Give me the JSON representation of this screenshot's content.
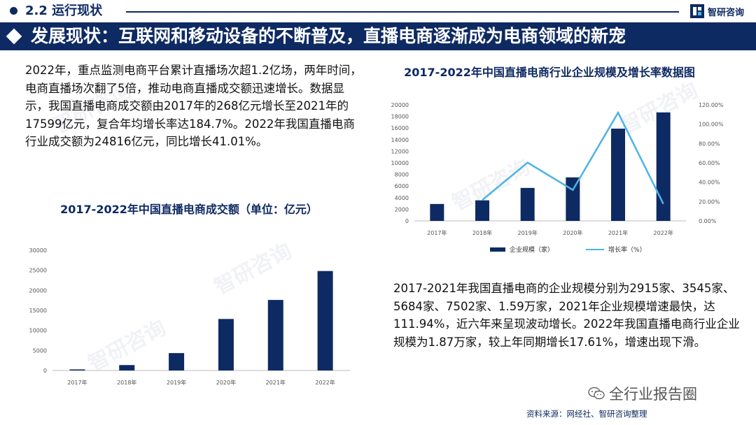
{
  "header": {
    "section_title": "2.2 运行现状",
    "logo_text": "智研咨询",
    "banner_text": "发展现状：互联网和移动设备的不断普及，直播电商逐渐成为电商领域的新宠"
  },
  "watermark_text": "智研咨询",
  "paragraph_left": "2022年，重点监测电商平台累计直播场次超1.2亿场，两年时间，电商直播场次翻了5倍，推动电商直播成交额迅速增长。数据显示，我国直播电商成交额由2017年的268亿元增长至2021年的17599亿元，复合年均增长率达184.7%。2022年我国直播电商行业成交额为24816亿元，同比增长41.01%。",
  "paragraph_right": "2017-2021年我国直播电商的企业规模分别为2915家、3545家、5684家、7502家、1.59万家，2021年企业规模增速最快，达111.94%，近六年来呈现波动增长。2022年我国直播电商行业企业规模为1.87万家，较上年同期增长17.61%，增速出现下滑。",
  "footer": {
    "wechat_label": "全行业报告圈",
    "source": "资料来源：网经社、智研咨询整理"
  },
  "colors": {
    "navy": "#0e2a63",
    "line_blue": "#4db3e6"
  },
  "chart_data": [
    {
      "type": "bar",
      "title": "2017-2022年中国直播电商成交额（单位：亿元）",
      "categories": [
        "2017年",
        "2018年",
        "2019年",
        "2020年",
        "2021年",
        "2022年"
      ],
      "values": [
        268,
        1354,
        4338,
        12850,
        17599,
        24816
      ],
      "ylim": [
        0,
        30000
      ],
      "yticks": [
        0,
        5000,
        10000,
        15000,
        20000,
        25000,
        30000
      ],
      "grid": false,
      "color": "#0e2a63"
    },
    {
      "type": "bar",
      "title": "2017-2022年中国直播电商行业企业规模及增长率数据图",
      "categories": [
        "2017年",
        "2018年",
        "2019年",
        "2020年",
        "2021年",
        "2022年"
      ],
      "series": [
        {
          "name": "企业规模（家）",
          "type": "bar",
          "values": [
            2915,
            3545,
            5684,
            7502,
            15900,
            18700
          ],
          "color": "#0e2a63"
        },
        {
          "name": "增长率（%）",
          "type": "line",
          "axis": "right",
          "values": [
            null,
            21.6,
            60.3,
            32.0,
            111.94,
            17.61
          ],
          "color": "#4db3e6"
        }
      ],
      "ylim": [
        0,
        20000
      ],
      "yticks": [
        0,
        2000,
        4000,
        6000,
        8000,
        10000,
        12000,
        14000,
        16000,
        18000,
        20000
      ],
      "y2lim": [
        0,
        120
      ],
      "y2ticks": [
        "0.00%",
        "20.00%",
        "40.00%",
        "60.00%",
        "80.00%",
        "100.00%",
        "120.00%"
      ],
      "legend_position": "bottom",
      "grid": false
    }
  ]
}
